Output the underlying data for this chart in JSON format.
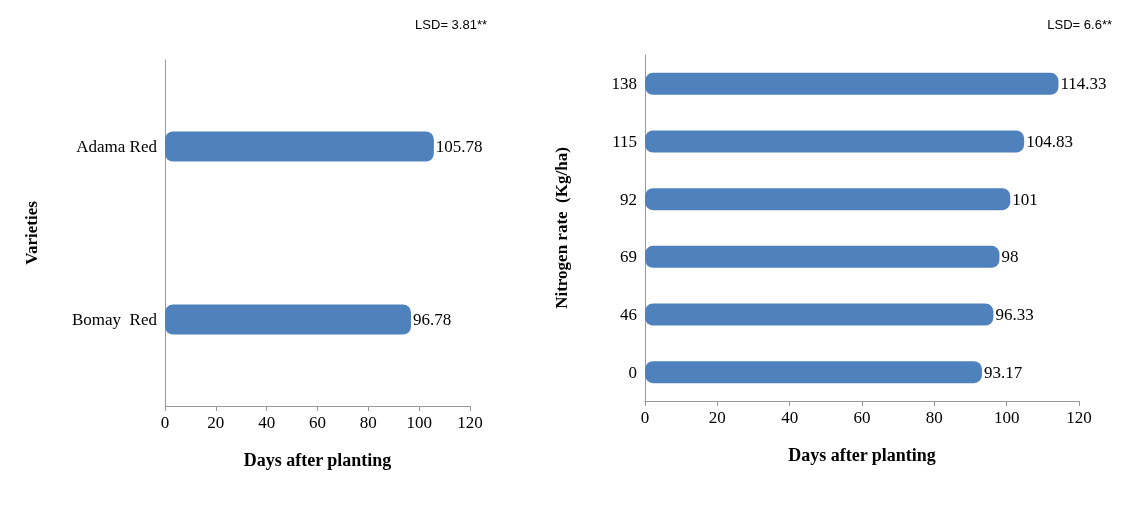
{
  "chart_data": [
    {
      "type": "bar",
      "orientation": "horizontal",
      "categories": [
        "Adama Red",
        "Bomay  Red"
      ],
      "values": [
        105.78,
        96.78
      ],
      "color": "#4f81bd",
      "xlim": [
        0,
        120
      ],
      "xticks": [
        0,
        20,
        40,
        60,
        80,
        100,
        120
      ],
      "xlabel": "Days after planting",
      "ylabel": "Varieties",
      "annotations": [
        "LSD= 3.81**"
      ],
      "data_labels": true
    },
    {
      "type": "bar",
      "orientation": "horizontal",
      "categories": [
        "138",
        "115",
        "92",
        "69",
        "46",
        "0"
      ],
      "values": [
        114.33,
        104.83,
        101,
        98,
        96.33,
        93.17
      ],
      "color": "#4f81bd",
      "xlim": [
        0,
        120
      ],
      "xticks": [
        0,
        20,
        40,
        60,
        80,
        100,
        120
      ],
      "xlabel": "Days after planting",
      "ylabel": "Nitrogen rate  (Kg/ha)",
      "annotations": [
        "LSD= 6.6**"
      ],
      "data_labels": true
    }
  ]
}
